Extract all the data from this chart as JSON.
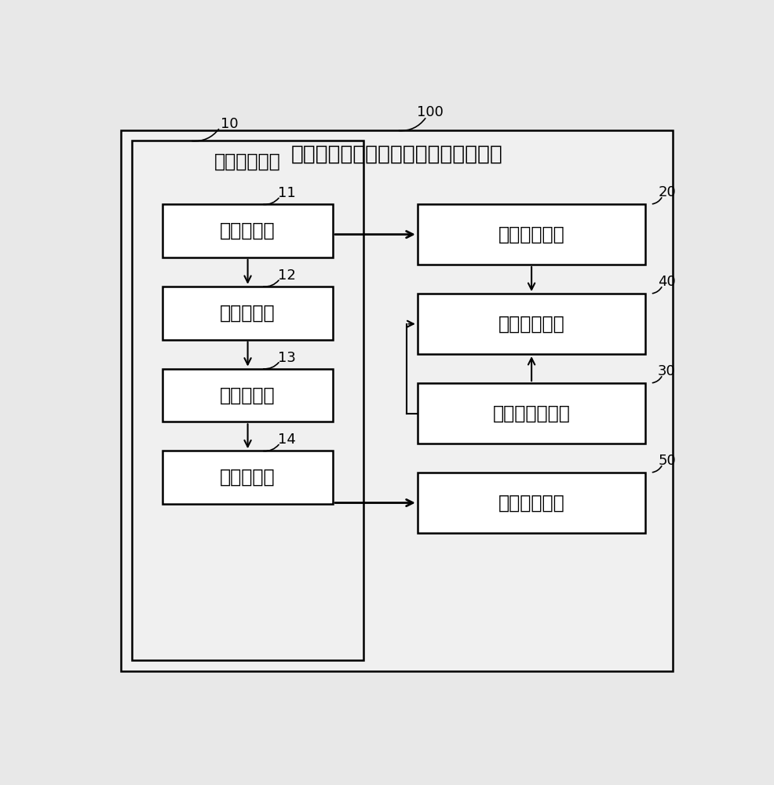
{
  "title": "从腹部图像数据中自动分割骨骼的系统",
  "title_fontsize": 19,
  "bg_color": "#e8e8e8",
  "box_facecolor": "#ffffff",
  "box_edgecolor": "#000000",
  "text_color": "#000000",
  "label_10": "第一分割模块",
  "num_10": "10",
  "label_11": "检测子模块",
  "num_11": "11",
  "label_12": "判断子模块",
  "num_12": "12",
  "label_13": "遍历子模块",
  "num_13": "13",
  "label_14": "分割子模块",
  "num_14": "14",
  "label_20": "数据修改模块",
  "num_20": "20",
  "label_40": "第二分割模块",
  "num_40": "40",
  "label_30": "种子点选取模块",
  "num_30": "30",
  "label_50": "第三分割模块",
  "num_50": "50",
  "num_100": "100",
  "chinese_fontsize": 17,
  "num_fontsize": 13
}
